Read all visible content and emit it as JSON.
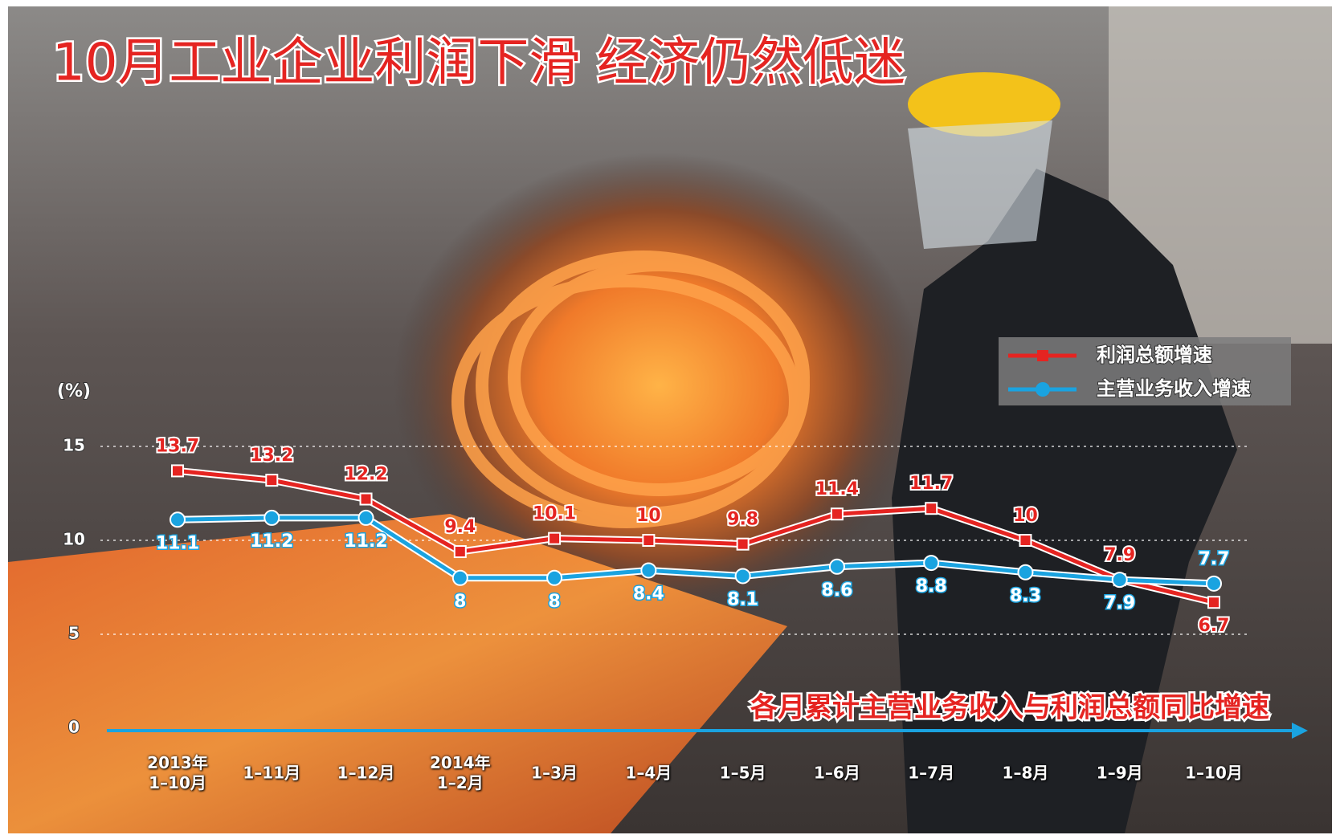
{
  "chart_data": {
    "type": "line",
    "title": "10月工业企业利润下滑 经济仍然低迷",
    "subtitle": "各月累计主营业务收入与利润总额同比增速",
    "y_label": "(%)",
    "categories": [
      "2013年\n1–10月",
      "1–11月",
      "1–12月",
      "2014年\n1–2月",
      "1–3月",
      "1–4月",
      "1–5月",
      "1–6月",
      "1–7月",
      "1–8月",
      "1–9月",
      "1–10月"
    ],
    "series": [
      {
        "name": "利润总额增速",
        "color": "#e52421",
        "marker": "square",
        "values": [
          13.7,
          13.2,
          12.2,
          9.4,
          10.1,
          10.0,
          9.8,
          11.4,
          11.7,
          10.0,
          7.9,
          6.7
        ]
      },
      {
        "name": "主营业务收入增速",
        "color": "#1aa3e0",
        "marker": "circle",
        "values": [
          11.1,
          11.2,
          11.2,
          8.0,
          8.0,
          8.4,
          8.1,
          8.6,
          8.8,
          8.3,
          7.9,
          7.7
        ]
      }
    ],
    "ylim": [
      0,
      15
    ],
    "yticks": [
      0,
      5,
      10,
      15
    ],
    "grid": true,
    "legend": "upper right"
  }
}
